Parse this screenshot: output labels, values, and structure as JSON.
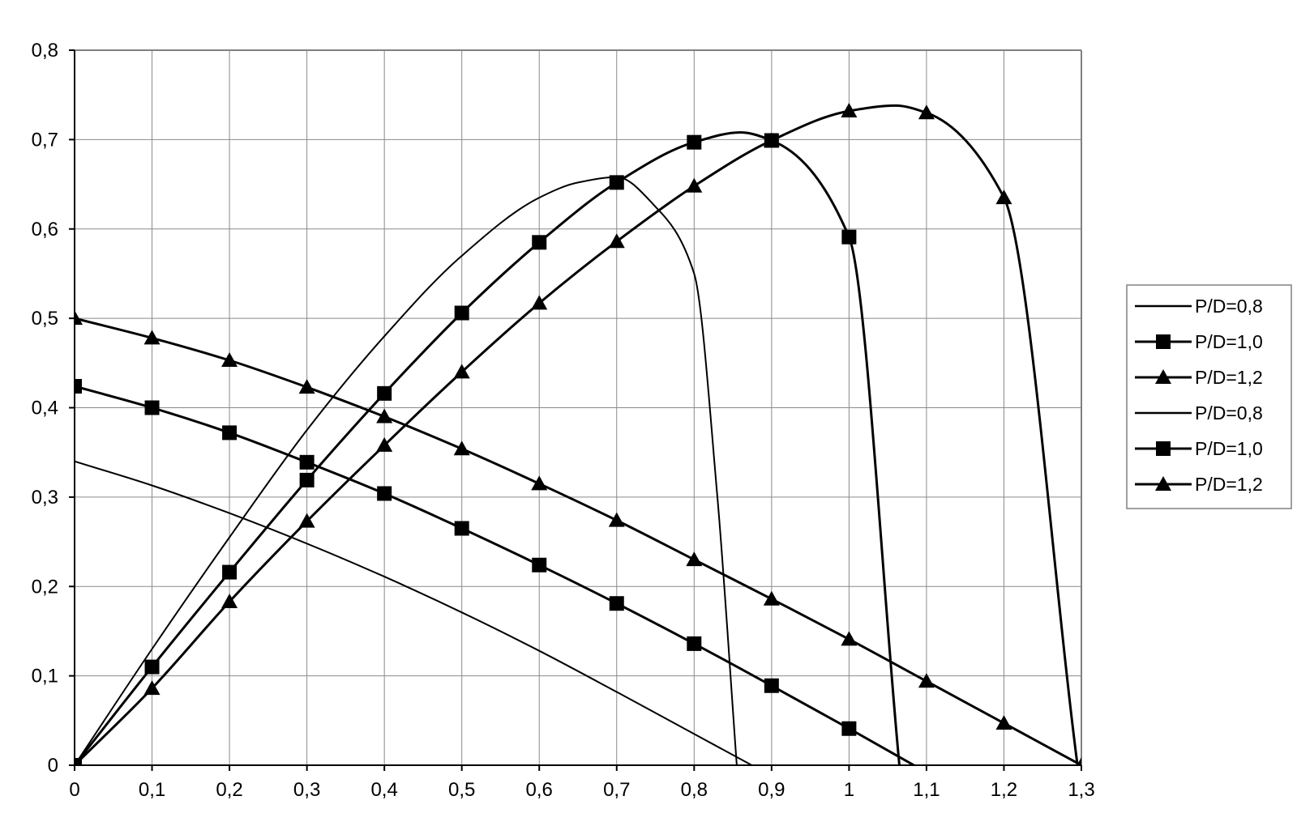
{
  "chart_data": {
    "type": "line",
    "title": "",
    "xlabel": "",
    "ylabel": "",
    "xlim": [
      0,
      1.3
    ],
    "ylim": [
      0,
      0.8
    ],
    "x_ticks": [
      "0",
      "0,1",
      "0,2",
      "0,3",
      "0,4",
      "0,5",
      "0,6",
      "0,7",
      "0,8",
      "0,9",
      "1",
      "1,1",
      "1,2",
      "1,3"
    ],
    "y_ticks": [
      "0",
      "0,1",
      "0,2",
      "0,3",
      "0,4",
      "0,5",
      "0,6",
      "0,7",
      "0,8"
    ],
    "grid": true,
    "legend_position": "right",
    "series": [
      {
        "name": "P/D=0,8",
        "marker": "none",
        "x": [
          0,
          0.1,
          0.2,
          0.3,
          0.4,
          0.5,
          0.6,
          0.7,
          0.8,
          0.9
        ],
        "values": [
          0.34,
          0.313,
          0.282,
          0.248,
          0.211,
          0.171,
          0.128,
          0.082,
          0.035,
          -0.012
        ]
      },
      {
        "name": "P/D=1,0",
        "marker": "square",
        "x": [
          0,
          0.1,
          0.2,
          0.3,
          0.4,
          0.5,
          0.6,
          0.7,
          0.8,
          0.9,
          1.0,
          1.1
        ],
        "values": [
          0.424,
          0.4,
          0.372,
          0.339,
          0.304,
          0.265,
          0.224,
          0.181,
          0.136,
          0.089,
          0.041,
          -0.008
        ]
      },
      {
        "name": "P/D=1,2",
        "marker": "triangle",
        "x": [
          0,
          0.1,
          0.2,
          0.3,
          0.4,
          0.5,
          0.6,
          0.7,
          0.8,
          0.9,
          1.0,
          1.1,
          1.2,
          1.3
        ],
        "values": [
          0.5,
          0.478,
          0.453,
          0.423,
          0.39,
          0.354,
          0.315,
          0.274,
          0.23,
          0.186,
          0.141,
          0.094,
          0.047,
          0.0
        ]
      },
      {
        "name": "P/D=0,8",
        "marker": "none",
        "x": [
          0,
          0.1,
          0.2,
          0.3,
          0.4,
          0.5,
          0.6,
          0.65,
          0.7,
          0.75,
          0.8,
          0.83,
          0.855
        ],
        "values": [
          0,
          0.13,
          0.255,
          0.375,
          0.48,
          0.57,
          0.635,
          0.652,
          0.658,
          0.625,
          0.55,
          0.3,
          0.0
        ]
      },
      {
        "name": "P/D=1,0",
        "marker": "square",
        "x": [
          0,
          0.1,
          0.2,
          0.3,
          0.4,
          0.5,
          0.6,
          0.7,
          0.8,
          0.86,
          0.9,
          1.0,
          1.065
        ],
        "values": [
          0,
          0.11,
          0.216,
          0.319,
          0.416,
          0.506,
          0.585,
          0.652,
          0.697,
          0.708,
          0.699,
          0.591,
          0.0
        ],
        "marker_x": [
          0,
          0.1,
          0.2,
          0.3,
          0.4,
          0.5,
          0.6,
          0.7,
          0.8,
          0.9,
          1.0
        ]
      },
      {
        "name": "P/D=1,2",
        "marker": "triangle",
        "x": [
          0,
          0.1,
          0.2,
          0.3,
          0.4,
          0.5,
          0.6,
          0.7,
          0.8,
          0.9,
          1.0,
          1.06,
          1.1,
          1.2,
          1.295
        ],
        "values": [
          0,
          0.086,
          0.183,
          0.273,
          0.358,
          0.44,
          0.517,
          0.586,
          0.648,
          0.699,
          0.732,
          0.738,
          0.73,
          0.635,
          0.0
        ],
        "marker_x": [
          0,
          0.1,
          0.2,
          0.3,
          0.4,
          0.5,
          0.6,
          0.7,
          0.8,
          0.9,
          1.0,
          1.1,
          1.2
        ]
      }
    ]
  }
}
